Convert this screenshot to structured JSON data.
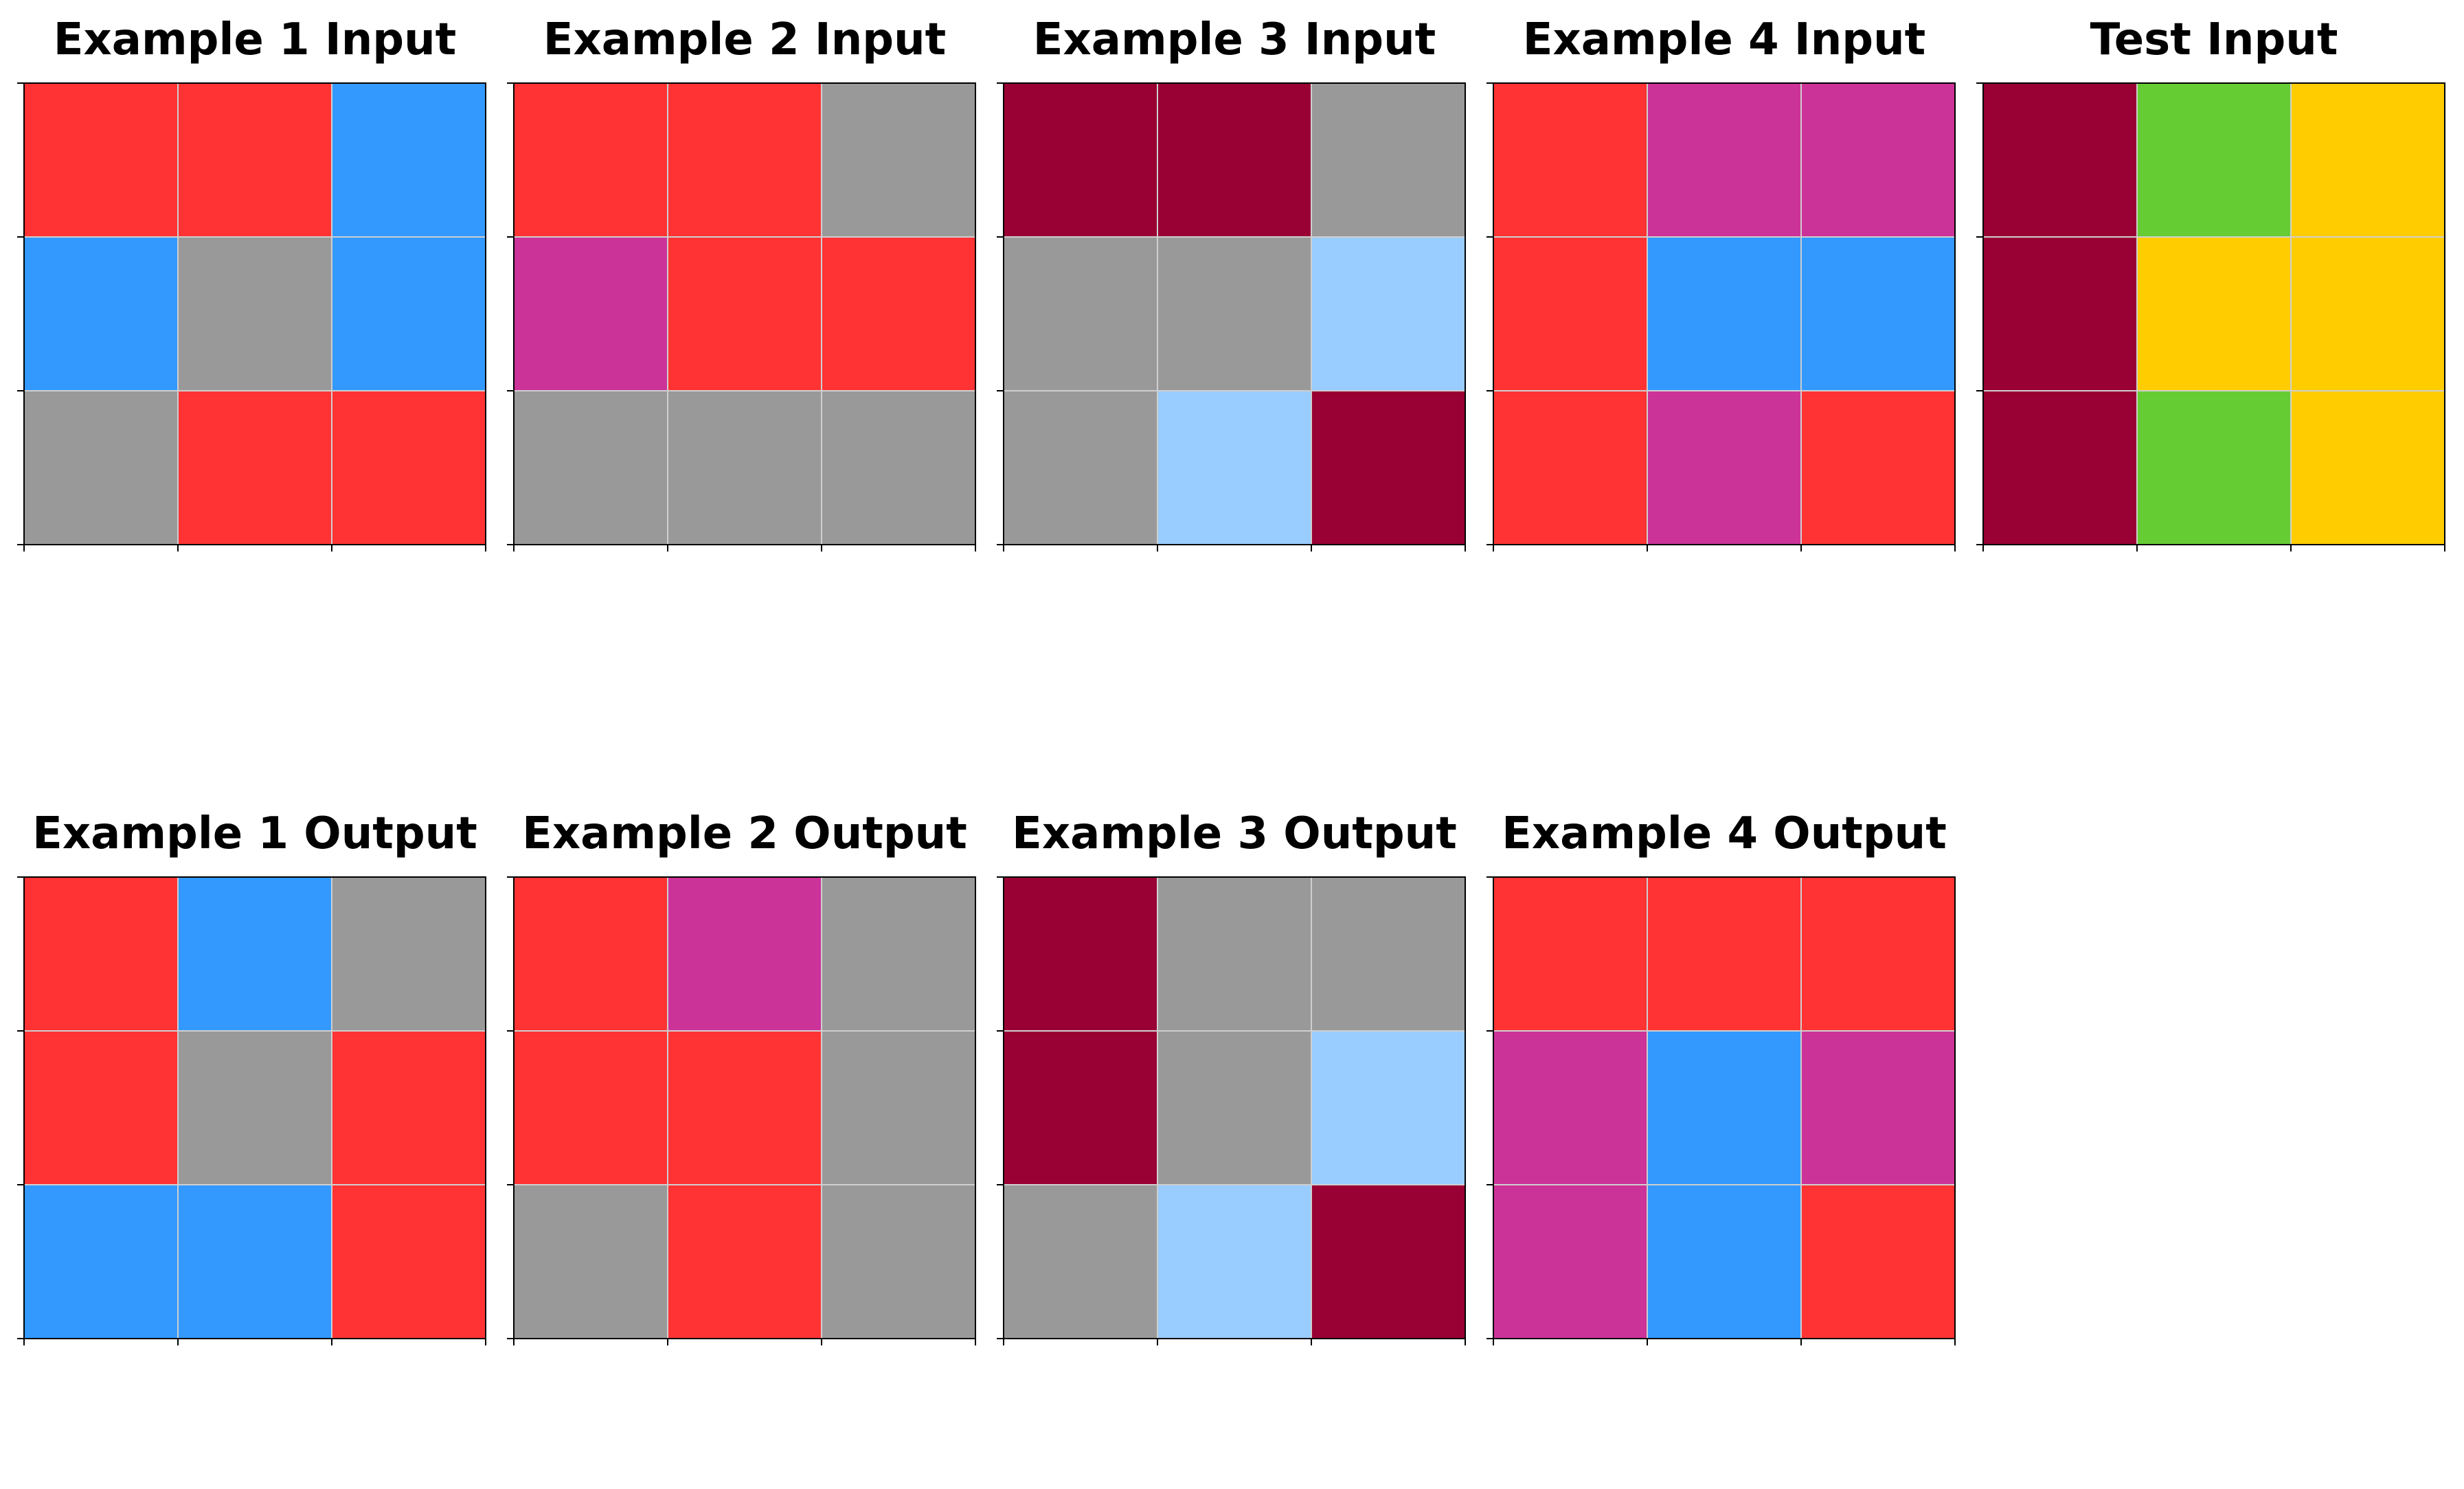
{
  "palette": {
    "red": "#FF3333",
    "blue": "#3399FF",
    "gray": "#999999",
    "magenta": "#CC3399",
    "maroon": "#990033",
    "lightblue": "#99CCFF",
    "green": "#66CC33",
    "yellow": "#FFCC00"
  },
  "panels": [
    {
      "title": "Example 1 Input",
      "cells": [
        [
          "red",
          "red",
          "blue"
        ],
        [
          "blue",
          "gray",
          "blue"
        ],
        [
          "gray",
          "red",
          "red"
        ]
      ]
    },
    {
      "title": "Example 2 Input",
      "cells": [
        [
          "red",
          "red",
          "gray"
        ],
        [
          "magenta",
          "red",
          "red"
        ],
        [
          "gray",
          "gray",
          "gray"
        ]
      ]
    },
    {
      "title": "Example 3 Input",
      "cells": [
        [
          "maroon",
          "maroon",
          "gray"
        ],
        [
          "gray",
          "gray",
          "lightblue"
        ],
        [
          "gray",
          "lightblue",
          "maroon"
        ]
      ]
    },
    {
      "title": "Example 4 Input",
      "cells": [
        [
          "red",
          "magenta",
          "magenta"
        ],
        [
          "red",
          "blue",
          "blue"
        ],
        [
          "red",
          "magenta",
          "red"
        ]
      ]
    },
    {
      "title": "Test Input",
      "cells": [
        [
          "maroon",
          "green",
          "yellow"
        ],
        [
          "maroon",
          "yellow",
          "yellow"
        ],
        [
          "maroon",
          "green",
          "yellow"
        ]
      ]
    },
    {
      "title": "Example 1 Output",
      "cells": [
        [
          "red",
          "blue",
          "gray"
        ],
        [
          "red",
          "gray",
          "red"
        ],
        [
          "blue",
          "blue",
          "red"
        ]
      ]
    },
    {
      "title": "Example 2 Output",
      "cells": [
        [
          "red",
          "magenta",
          "gray"
        ],
        [
          "red",
          "red",
          "gray"
        ],
        [
          "gray",
          "red",
          "gray"
        ]
      ]
    },
    {
      "title": "Example 3 Output",
      "cells": [
        [
          "maroon",
          "gray",
          "gray"
        ],
        [
          "maroon",
          "gray",
          "lightblue"
        ],
        [
          "gray",
          "lightblue",
          "maroon"
        ]
      ]
    },
    {
      "title": "Example 4 Output",
      "cells": [
        [
          "red",
          "red",
          "red"
        ],
        [
          "magenta",
          "blue",
          "magenta"
        ],
        [
          "magenta",
          "blue",
          "red"
        ]
      ]
    }
  ]
}
